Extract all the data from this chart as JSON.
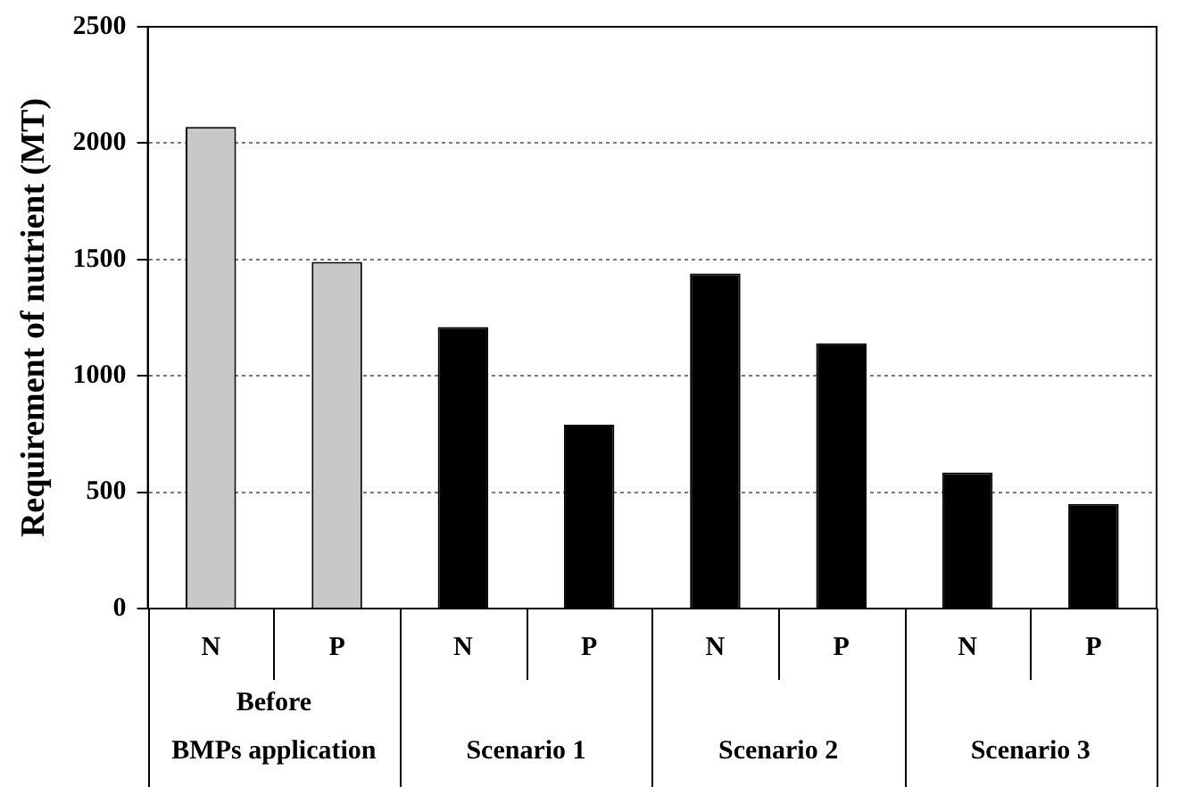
{
  "chart_data": {
    "type": "bar",
    "ylabel": "Requirement of nutrient (MT)",
    "categories": [
      "N",
      "P",
      "N",
      "P",
      "N",
      "P",
      "N",
      "P"
    ],
    "values": [
      2070,
      1490,
      1210,
      790,
      1440,
      1140,
      585,
      450
    ],
    "colors": [
      "#c8c8c8",
      "#c8c8c8",
      "#000000",
      "#000000",
      "#000000",
      "#000000",
      "#000000",
      "#000000"
    ],
    "ylim": [
      0,
      2500
    ],
    "yticks": [
      0,
      500,
      1000,
      1500,
      2000,
      2500
    ],
    "grid": "y",
    "legend": false,
    "annotations": [
      "Before\nBMPs application",
      "Scenario 1",
      "Scenario 2",
      "Scenario 3"
    ]
  }
}
